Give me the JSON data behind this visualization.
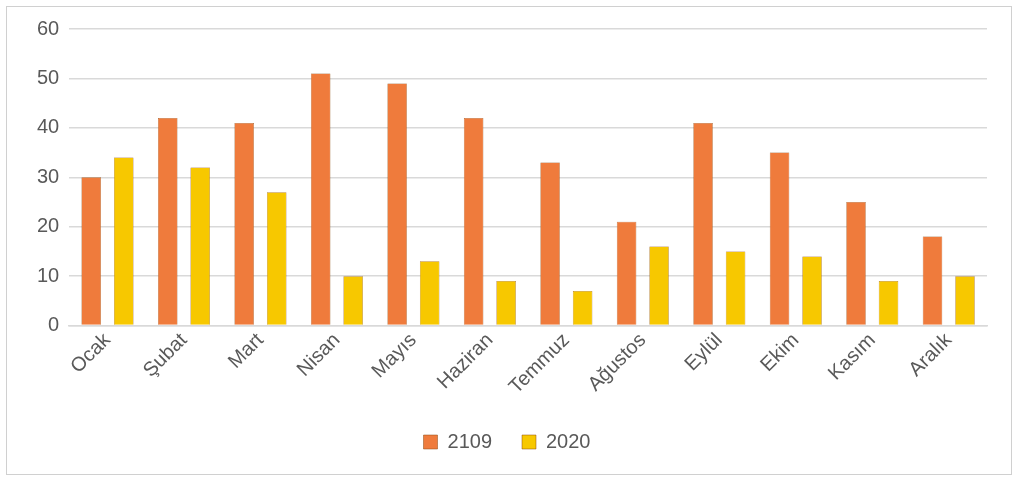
{
  "chart_data": {
    "type": "bar",
    "categories": [
      "Ocak",
      "Şubat",
      "Mart",
      "Nisan",
      "Mayıs",
      "Haziran",
      "Temmuz",
      "Ağustos",
      "Eylül",
      "Ekim",
      "Kasım",
      "Aralık"
    ],
    "series": [
      {
        "name": "2109",
        "color": "#ef7b3c",
        "values": [
          30,
          42,
          41,
          51,
          49,
          42,
          33,
          21,
          41,
          35,
          25,
          18
        ]
      },
      {
        "name": "2020",
        "color": "#f7c800",
        "values": [
          34,
          32,
          27,
          10,
          13,
          9,
          7,
          16,
          15,
          14,
          9,
          10
        ]
      }
    ],
    "ylim": [
      0,
      60
    ],
    "yticks": [
      0,
      10,
      20,
      30,
      40,
      50,
      60
    ],
    "grid": "y",
    "legend": "bottom"
  }
}
